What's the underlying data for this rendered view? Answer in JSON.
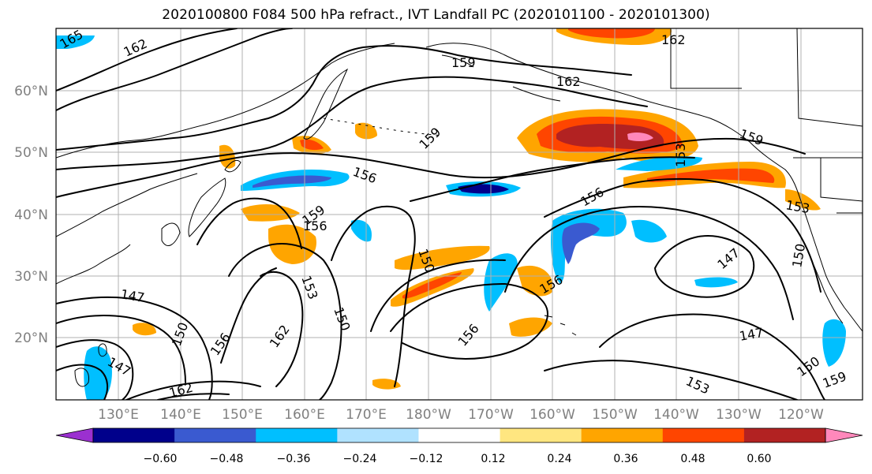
{
  "title": "2020100800 F084 500 hPa refract., IVT Landfall PC (2020101100 - 2020101300)",
  "map": {
    "lon_ticks": [
      "130°E",
      "140°E",
      "150°E",
      "160°E",
      "170°E",
      "180°W",
      "170°W",
      "160°W",
      "150°W",
      "140°W",
      "130°W",
      "120°W"
    ],
    "lat_ticks": [
      "60°N",
      "50°N",
      "40°N",
      "30°N",
      "20°N"
    ],
    "contour_labels": [
      "165",
      "162",
      "159",
      "162",
      "162",
      "156",
      "153",
      "156",
      "159",
      "156",
      "153",
      "150",
      "147",
      "156",
      "153",
      "147",
      "150",
      "159",
      "162",
      "156",
      "150",
      "147",
      "150",
      "147",
      "153",
      "150",
      "159",
      "156",
      "162",
      "159"
    ]
  },
  "colorbar": {
    "tick_labels": [
      "−0.60",
      "−0.48",
      "−0.36",
      "−0.24",
      "−0.12",
      "0.12",
      "0.24",
      "0.36",
      "0.48",
      "0.60"
    ],
    "colors": [
      "#9b30d0",
      "#00008b",
      "#3a5ad0",
      "#00bfff",
      "#b0e2ff",
      "#ffffff",
      "#ffe680",
      "#ffa500",
      "#ff4500",
      "#b22222",
      "#ff88bb"
    ]
  }
}
